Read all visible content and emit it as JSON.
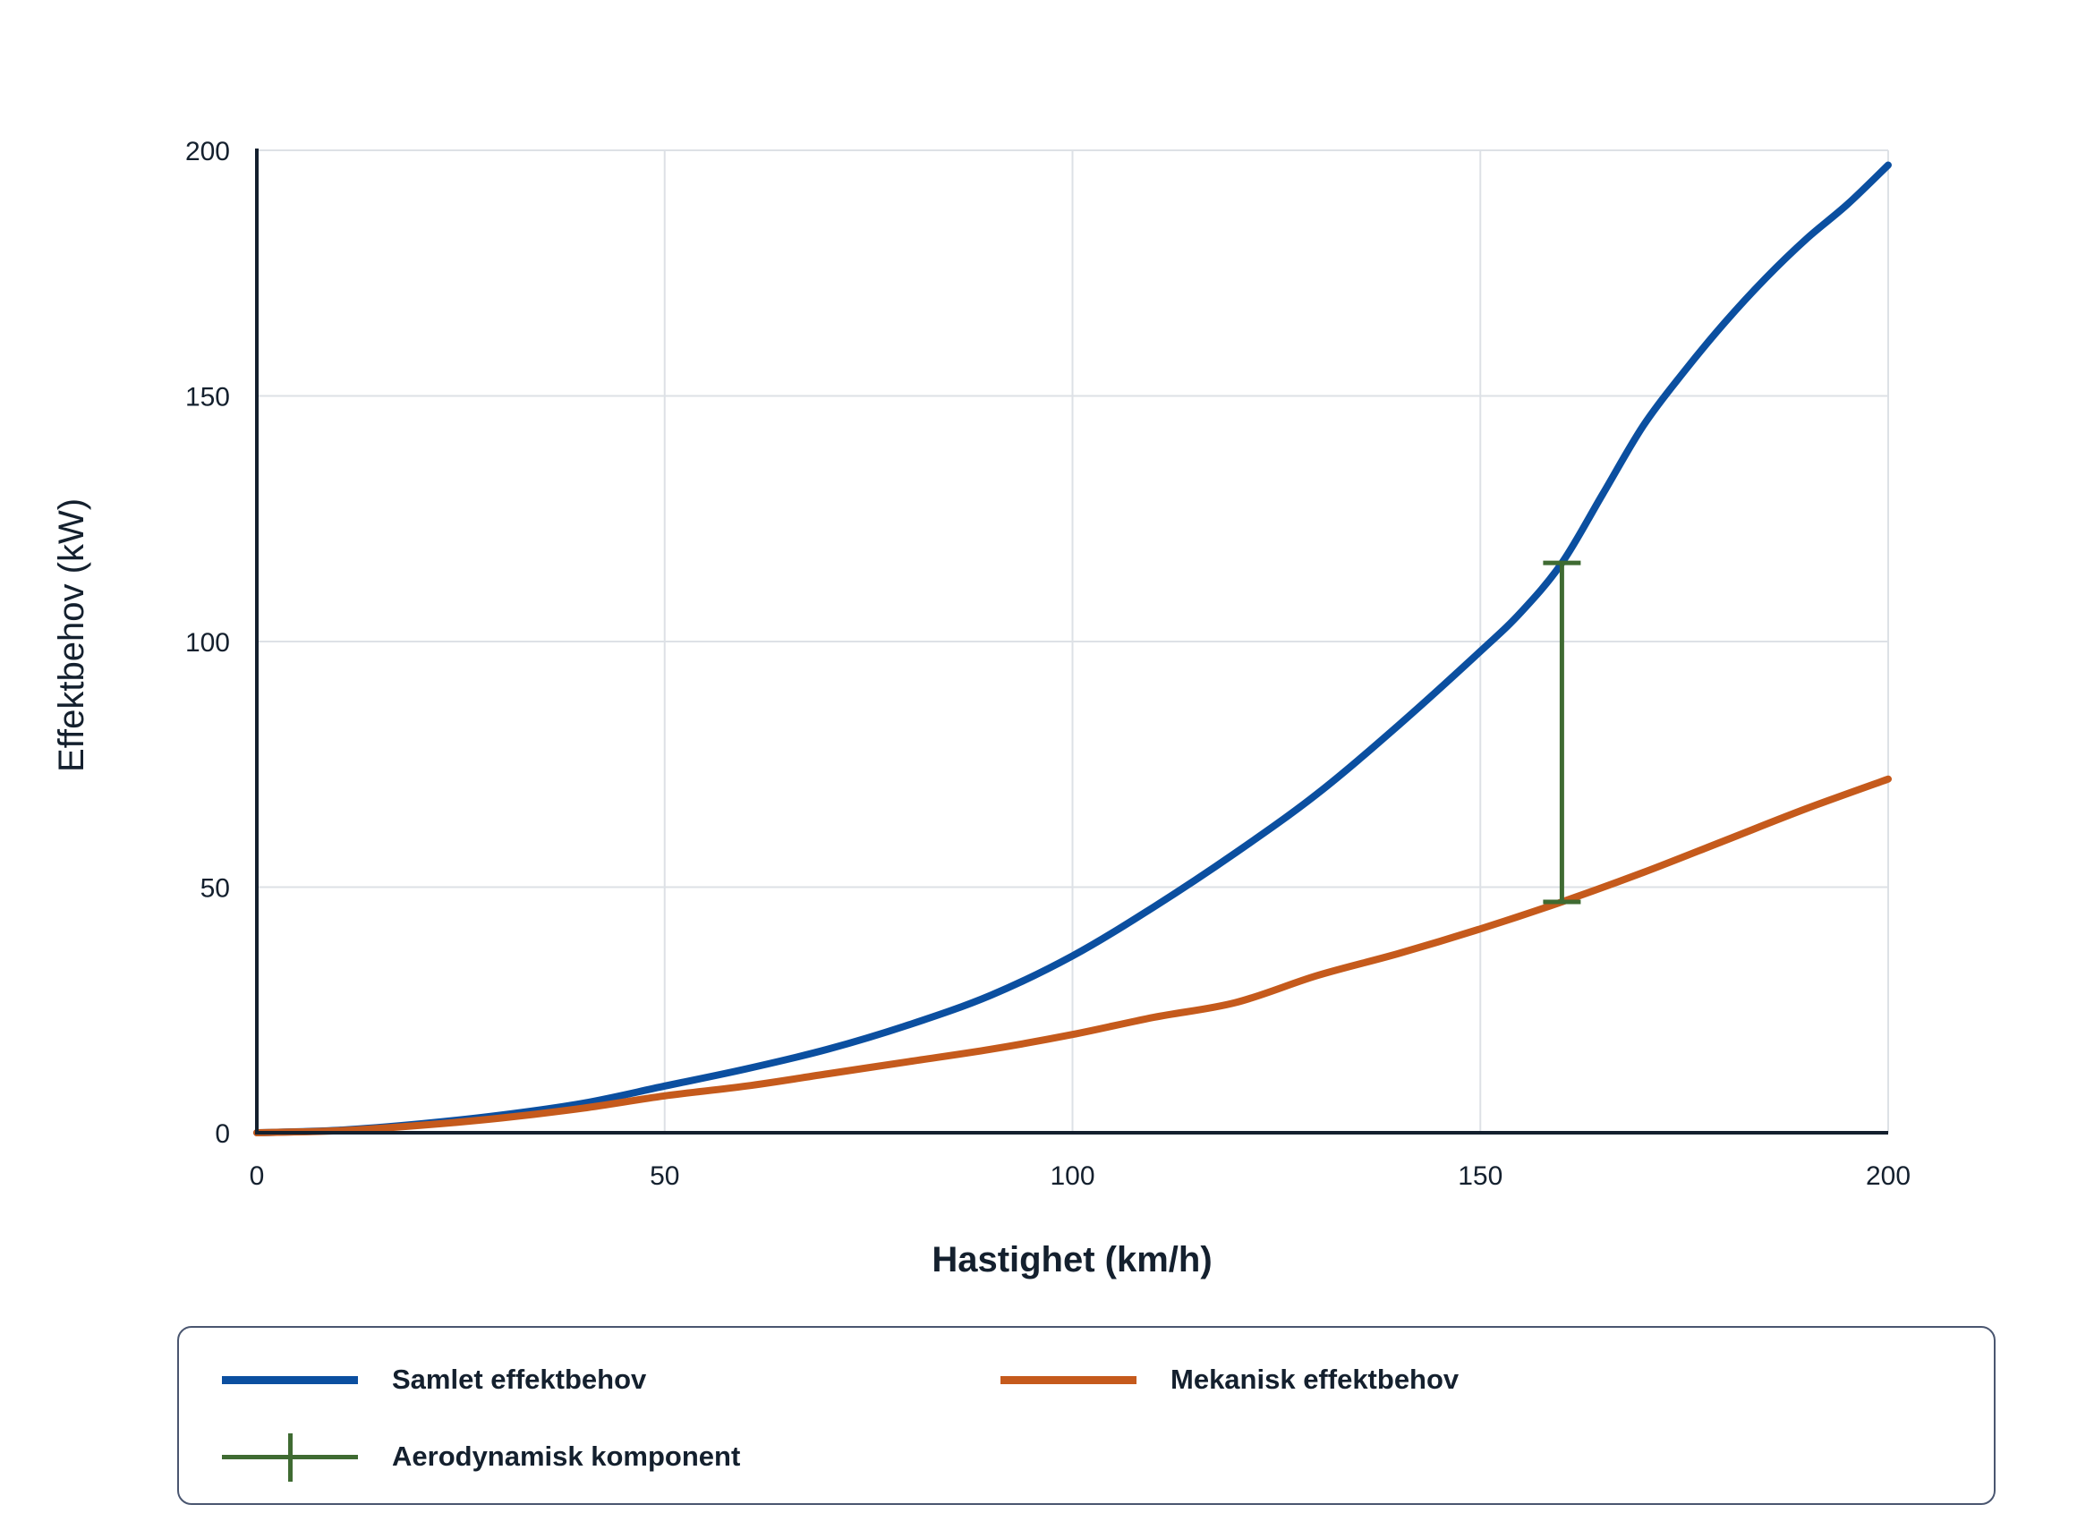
{
  "chart_data": {
    "type": "line",
    "xlabel": "Hastighet (km/h)",
    "ylabel": "Effektbehov (kW)",
    "xlim": [
      0,
      200
    ],
    "ylim": [
      0,
      200
    ],
    "xticks": [
      "0",
      "50",
      "100",
      "150",
      "200"
    ],
    "yticks": [
      "0",
      "50",
      "100",
      "150",
      "200"
    ],
    "grid": true,
    "legend_position": "bottom",
    "series": [
      {
        "name": "Samlet effektbehov",
        "color": "#0b4fa0",
        "x": [
          0,
          10,
          20,
          30,
          40,
          50,
          60,
          70,
          80,
          90,
          100,
          110,
          120,
          130,
          140,
          150,
          155,
          160,
          165,
          170,
          175,
          180,
          185,
          190,
          195,
          200
        ],
        "y": [
          0,
          0.5,
          1.8,
          3.6,
          6,
          9.5,
          13,
          17,
          22,
          28,
          36,
          46,
          57,
          69,
          83,
          98,
          106,
          116,
          130,
          144,
          155,
          165,
          174,
          182,
          189,
          197
        ]
      },
      {
        "name": "Mekanisk effektbehov",
        "color": "#c55a1c",
        "x": [
          0,
          10,
          20,
          30,
          40,
          50,
          60,
          70,
          80,
          90,
          100,
          110,
          120,
          130,
          140,
          150,
          160,
          170,
          180,
          190,
          200
        ],
        "y": [
          0,
          0.4,
          1.5,
          3,
          5,
          7.5,
          9.5,
          12,
          14.5,
          17,
          20,
          23.5,
          26.5,
          32,
          36.5,
          41.5,
          47,
          53,
          59.5,
          66,
          72
        ]
      }
    ],
    "annotation": {
      "name": "Aerodynamisk komponent",
      "color": "#3f6b32",
      "x": 160,
      "y_low": 47,
      "y_high": 116
    },
    "axis_color": "#14202e",
    "grid_color": "#dde1e6"
  }
}
